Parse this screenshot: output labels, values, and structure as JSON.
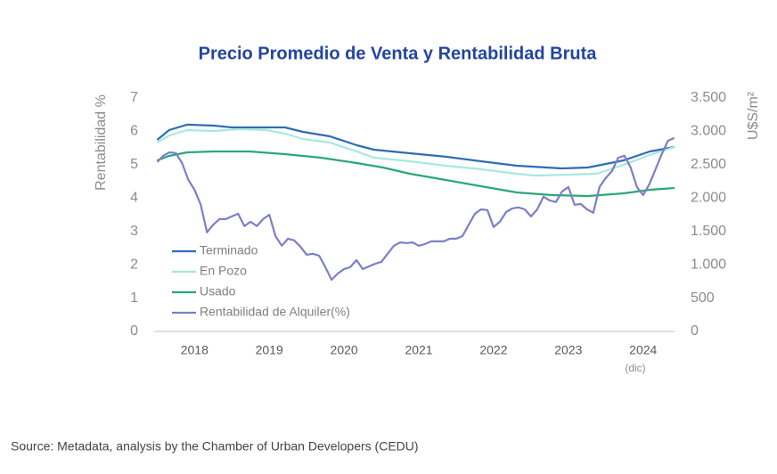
{
  "chart_data": {
    "type": "line",
    "title": "Precio Promedio de Venta y Rentabilidad Bruta",
    "ylabel": "Rentabilidad %",
    "y2label": "U$S/m²",
    "annotation": "(dic)",
    "source": "Source: Metadata, analysis by the Chamber of Urban Developers (CEDU)",
    "xlim": [
      2017.96,
      2024.92
    ],
    "xticks": [
      {
        "value": 2018.5,
        "label": "2018"
      },
      {
        "value": 2019.5,
        "label": "2019"
      },
      {
        "value": 2020.5,
        "label": "2020"
      },
      {
        "value": 2021.5,
        "label": "2021"
      },
      {
        "value": 2022.5,
        "label": "2022"
      },
      {
        "value": 2023.5,
        "label": "2023"
      },
      {
        "value": 2024.5,
        "label": "2024"
      }
    ],
    "ylim": [
      0,
      7
    ],
    "yticks": [
      0,
      1,
      2,
      3,
      4,
      5,
      6,
      7
    ],
    "y2lim": [
      0,
      3500
    ],
    "y2ticks": [
      0,
      500,
      {
        "value": 1000,
        "label": "1.000"
      },
      {
        "value": 1500,
        "label": "1.500"
      },
      {
        "value": 2000,
        "label": "2.000"
      },
      {
        "value": 2500,
        "label": "2.500"
      },
      {
        "value": 3000,
        "label": "3.000"
      },
      {
        "value": 3500,
        "label": "3.500"
      }
    ],
    "grid": false,
    "legend": "lower left",
    "series": [
      {
        "name": "Terminado",
        "color": "#2e6db4",
        "axis": "y2",
        "x": [
          2018.0,
          2018.16,
          2018.4,
          2018.76,
          2019.0,
          2019.47,
          2019.71,
          2019.95,
          2020.31,
          2020.67,
          2020.9,
          2021.38,
          2021.86,
          2022.33,
          2022.81,
          2023.41,
          2023.76,
          2024.24,
          2024.59,
          2024.92
        ],
        "values": [
          2872,
          3019,
          3100,
          3086,
          3059,
          3059,
          3059,
          2993,
          2926,
          2792,
          2725,
          2672,
          2619,
          2552,
          2485,
          2445,
          2458,
          2565,
          2699,
          2765
        ]
      },
      {
        "name": "En Pozo",
        "color": "#a8e8e0",
        "axis": "y2",
        "x": [
          2018.0,
          2018.16,
          2018.4,
          2018.76,
          2019.12,
          2019.47,
          2019.71,
          2019.95,
          2020.31,
          2020.67,
          2020.9,
          2021.38,
          2021.86,
          2022.33,
          2022.81,
          2023.05,
          2023.53,
          2023.88,
          2024.24,
          2024.59,
          2024.92
        ],
        "values": [
          2832,
          2939,
          3019,
          3006,
          3033,
          3019,
          2966,
          2886,
          2832,
          2699,
          2605,
          2552,
          2485,
          2432,
          2365,
          2338,
          2351,
          2365,
          2498,
          2645,
          2765
        ]
      },
      {
        "name": "Usado",
        "color": "#2aa876",
        "axis": "y2",
        "x": [
          2018.0,
          2018.16,
          2018.4,
          2018.76,
          2019.24,
          2019.71,
          2020.19,
          2020.67,
          2021.02,
          2021.38,
          2021.86,
          2022.33,
          2022.81,
          2023.29,
          2023.76,
          2024.24,
          2024.59,
          2024.92
        ],
        "values": [
          2565,
          2632,
          2685,
          2699,
          2699,
          2659,
          2605,
          2525,
          2458,
          2365,
          2271,
          2178,
          2084,
          2044,
          2030,
          2071,
          2124,
          2151
        ]
      },
      {
        "name": "Rentabilidad de Alquiler(%)",
        "color": "#7b7fc8",
        "x": [
          2018.0,
          2018.083,
          2018.167,
          2018.25,
          2018.333,
          2018.417,
          2018.5,
          2018.583,
          2018.667,
          2018.75,
          2018.833,
          2018.917,
          2019.0,
          2019.083,
          2019.167,
          2019.25,
          2019.333,
          2019.417,
          2019.5,
          2019.583,
          2019.667,
          2019.75,
          2019.833,
          2019.917,
          2020.0,
          2020.083,
          2020.167,
          2020.25,
          2020.333,
          2020.417,
          2020.5,
          2020.583,
          2020.667,
          2020.75,
          2020.833,
          2020.917,
          2021.0,
          2021.083,
          2021.167,
          2021.25,
          2021.333,
          2021.417,
          2021.5,
          2021.583,
          2021.667,
          2021.75,
          2021.833,
          2021.917,
          2022.0,
          2022.083,
          2022.167,
          2022.25,
          2022.333,
          2022.417,
          2022.5,
          2022.583,
          2022.667,
          2022.75,
          2022.833,
          2022.917,
          2023.0,
          2023.083,
          2023.167,
          2023.25,
          2023.333,
          2023.417,
          2023.5,
          2023.583,
          2023.667,
          2023.75,
          2023.833,
          2023.917,
          2024.0,
          2024.083,
          2024.167,
          2024.25,
          2024.333,
          2024.417,
          2024.5,
          2024.583,
          2024.667,
          2024.75,
          2024.833,
          2024.917
        ],
        "values": [
          5.08,
          5.27,
          5.37,
          5.35,
          5.05,
          4.55,
          4.25,
          3.8,
          2.97,
          3.2,
          3.37,
          3.37,
          3.45,
          3.53,
          3.16,
          3.29,
          3.16,
          3.37,
          3.5,
          2.86,
          2.57,
          2.78,
          2.73,
          2.54,
          2.3,
          2.33,
          2.27,
          1.93,
          1.55,
          1.74,
          1.87,
          1.93,
          2.14,
          1.87,
          1.95,
          2.03,
          2.09,
          2.33,
          2.57,
          2.67,
          2.65,
          2.67,
          2.57,
          2.62,
          2.7,
          2.7,
          2.7,
          2.78,
          2.78,
          2.86,
          3.2,
          3.53,
          3.66,
          3.64,
          3.13,
          3.29,
          3.58,
          3.69,
          3.72,
          3.66,
          3.45,
          3.66,
          4.04,
          3.93,
          3.88,
          4.2,
          4.33,
          3.8,
          3.82,
          3.66,
          3.56,
          4.33,
          4.6,
          4.81,
          5.21,
          5.27,
          4.92,
          4.33,
          4.09,
          4.41,
          4.87,
          5.32,
          5.72,
          5.8
        ]
      }
    ]
  }
}
